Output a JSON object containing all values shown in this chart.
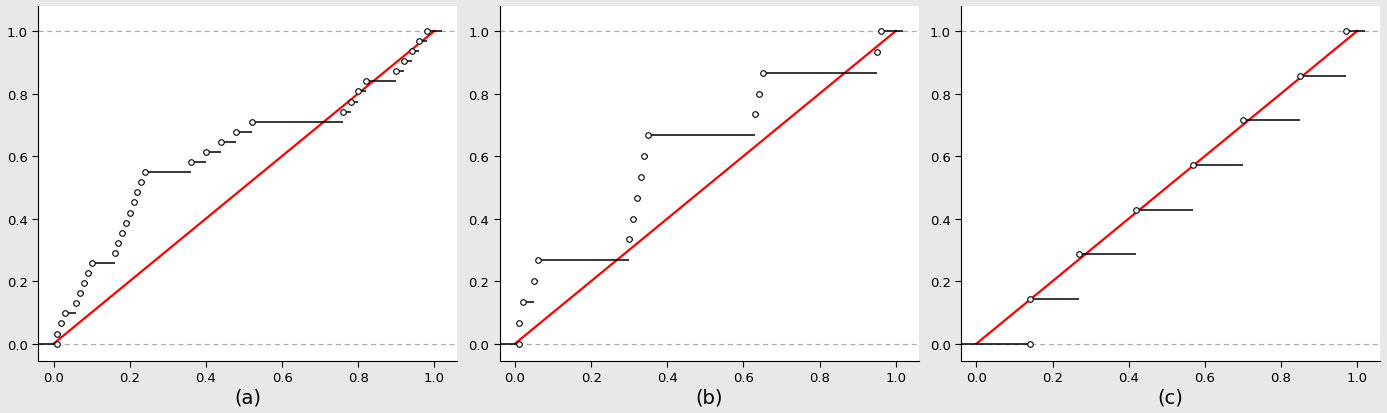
{
  "panel_a_x": [
    0.01,
    0.02,
    0.03,
    0.06,
    0.07,
    0.08,
    0.09,
    0.1,
    0.16,
    0.17,
    0.18,
    0.19,
    0.2,
    0.21,
    0.22,
    0.23,
    0.24,
    0.36,
    0.4,
    0.44,
    0.48,
    0.52,
    0.76,
    0.78,
    0.8,
    0.82,
    0.9,
    0.92,
    0.94,
    0.96,
    0.98
  ],
  "panel_b_x": [
    0.01,
    0.02,
    0.05,
    0.06,
    0.3,
    0.31,
    0.32,
    0.33,
    0.34,
    0.35,
    0.63,
    0.64,
    0.65,
    0.95,
    0.96
  ],
  "panel_c_x": [
    0.14,
    0.27,
    0.42,
    0.57,
    0.7,
    0.85,
    0.97
  ],
  "labels": [
    "(a)",
    "(b)",
    "(c)"
  ],
  "diag_color": "red",
  "point_facecolor": "white",
  "point_edgecolor": "black",
  "step_color": "black",
  "dashed_color": "#aaaaaa",
  "figure_bg": "#e8e8e8",
  "axes_bg": "white",
  "xticks": [
    0.0,
    0.2,
    0.4,
    0.6,
    0.8,
    1.0
  ],
  "yticks": [
    0.0,
    0.2,
    0.4,
    0.6,
    0.8,
    1.0
  ],
  "xlim": [
    -0.04,
    1.06
  ],
  "ylim": [
    -0.055,
    1.08
  ],
  "markersize": 4.0,
  "step_lw": 1.1,
  "diag_lw": 1.6,
  "dashed_lw": 0.9,
  "label_fontsize": 14,
  "tick_fontsize": 9.5
}
